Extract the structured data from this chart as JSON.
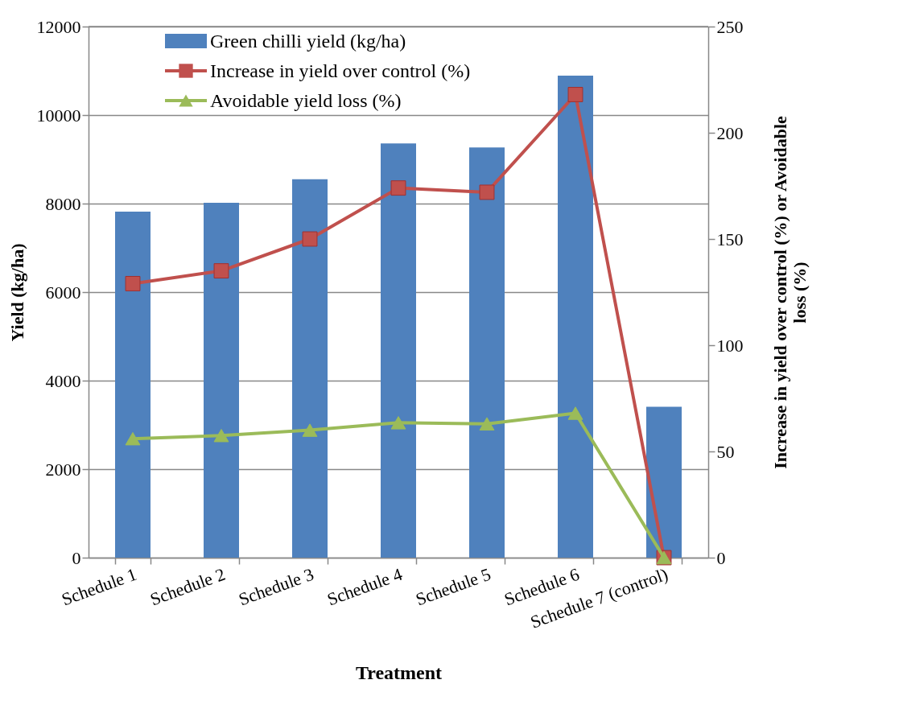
{
  "chart_data": {
    "type": "bar",
    "xlabel": "Treatment",
    "ylabel": "Yield (kg/ha)",
    "y2label": "Increase in yield over control  (%) or Avoidable\nloss (%)",
    "categories": [
      "Schedule 1",
      "Schedule 2",
      "Schedule 3",
      "Schedule 4",
      "Schedule 5",
      "Schedule 6",
      "Schedule 7 (control)"
    ],
    "series": [
      {
        "name": "Green chilli yield (kg/ha)",
        "color": "#4f81bd",
        "values": [
          7820,
          8020,
          8550,
          9360,
          9270,
          10890,
          3410
        ]
      },
      {
        "name": "Increase in yield over control (%)",
        "type": "line",
        "axis": "y2",
        "marker": "square",
        "color": "#c0504d",
        "values": [
          129,
          135,
          150,
          174,
          172,
          218,
          0
        ]
      },
      {
        "name": "Avoidable yield loss (%)",
        "type": "line",
        "axis": "y2",
        "marker": "triangle",
        "color": "#9bbb59",
        "values": [
          56,
          57.5,
          60,
          63.5,
          63,
          68,
          0
        ]
      }
    ],
    "ylim": [
      0,
      12000
    ],
    "yticks": [
      0,
      2000,
      4000,
      6000,
      8000,
      10000,
      12000
    ],
    "y2lim": [
      0,
      250
    ],
    "y2ticks": [
      0,
      50,
      100,
      150,
      200,
      250
    ],
    "grid": "y",
    "legend": "top"
  }
}
